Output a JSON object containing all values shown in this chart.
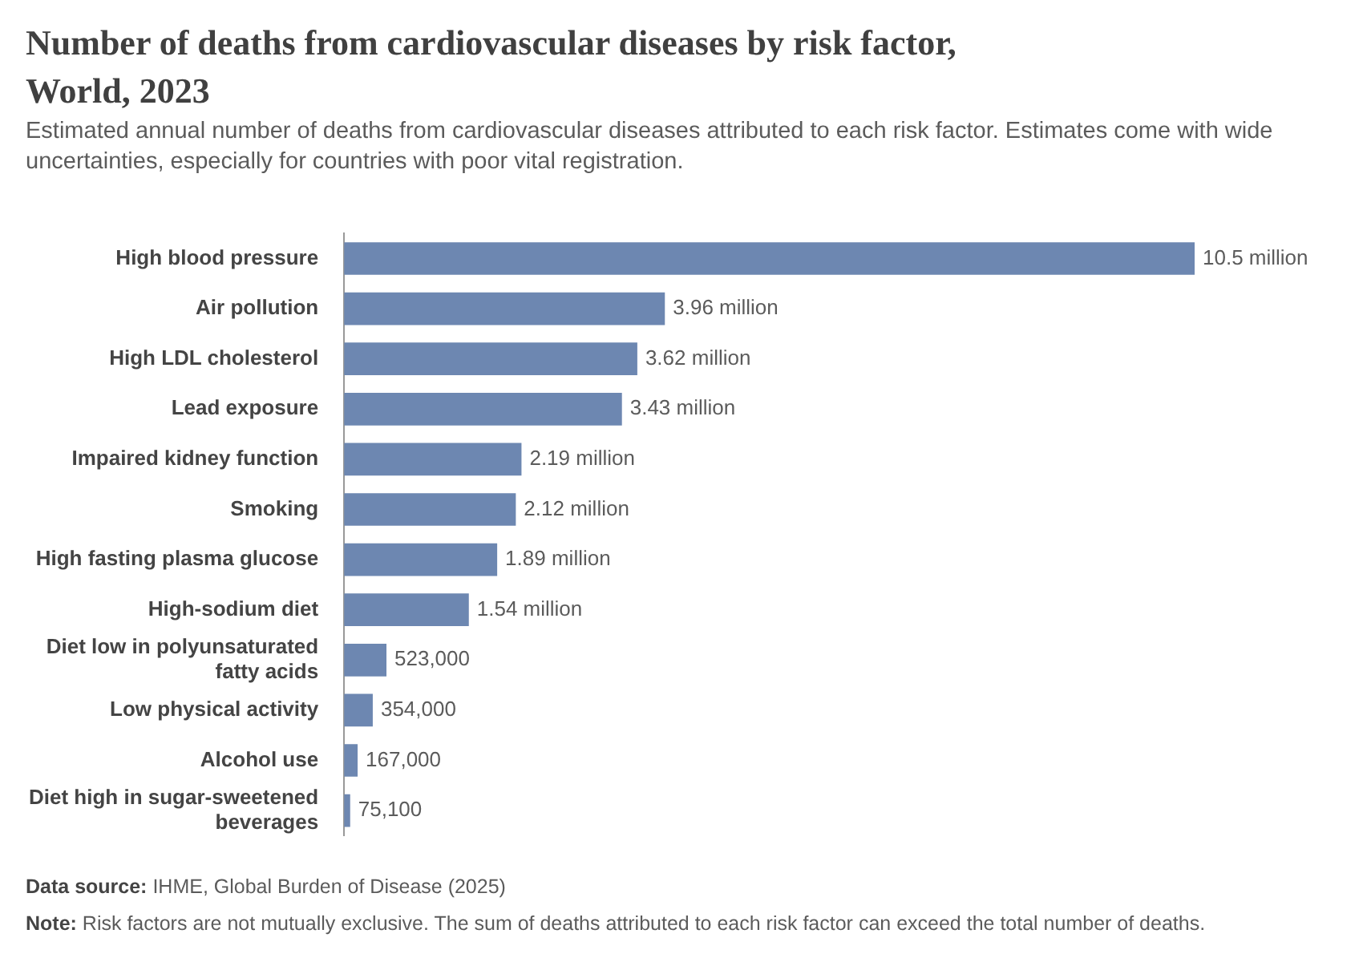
{
  "chart_data": {
    "type": "bar",
    "orientation": "horizontal",
    "title": "Number of deaths from cardiovascular diseases by risk factor, World, 2023",
    "subtitle": "Estimated annual number of deaths from cardiovascular diseases attributed to each risk factor. Estimates come with wide uncertainties, especially for countries with poor vital registration.",
    "categories": [
      "High blood pressure",
      "Air pollution",
      "High LDL cholesterol",
      "Lead exposure",
      "Impaired kidney function",
      "Smoking",
      "High fasting plasma glucose",
      "High-sodium diet",
      "Diet low in polyunsaturated fatty acids",
      "Low physical activity",
      "Alcohol use",
      "Diet high in sugar-sweetened beverages"
    ],
    "values": [
      10500000,
      3960000,
      3620000,
      3430000,
      2190000,
      2120000,
      1890000,
      1540000,
      523000,
      354000,
      167000,
      75100
    ],
    "value_labels": [
      "10.5 million",
      "3.96 million",
      "3.62 million",
      "3.43 million",
      "2.19 million",
      "2.12 million",
      "1.89 million",
      "1.54 million",
      "523,000",
      "354,000",
      "167,000",
      "75,100"
    ],
    "color": "#6d87b1",
    "tick_labels": "y",
    "annotations": [
      "Data source: IHME, Global Burden of Disease (2025)",
      "Note: Risk factors are not mutually exclusive. The sum of deaths attributed to each risk factor can exceed the total number of deaths."
    ]
  }
}
